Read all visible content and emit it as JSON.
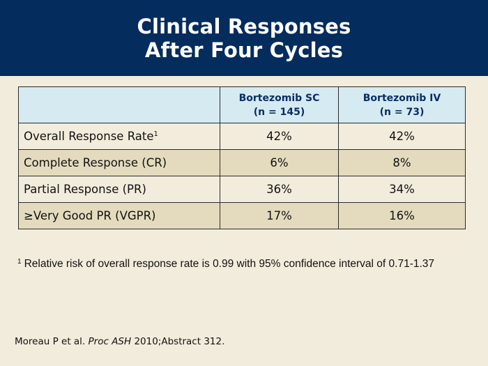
{
  "header": {
    "title_line1": "Clinical Responses",
    "title_line2": "After Four Cycles"
  },
  "table": {
    "columns": [
      {
        "name": "Bortezomib SC",
        "n": "(n = 145)"
      },
      {
        "name": "Bortezomib IV",
        "n": "(n = 73)"
      }
    ],
    "rows": [
      {
        "label": "Overall Response Rate",
        "sup": "1",
        "values": [
          "42%",
          "42%"
        ]
      },
      {
        "label": "Complete Response (CR)",
        "sup": "",
        "values": [
          "6%",
          "8%"
        ]
      },
      {
        "label": "Partial Response (PR)",
        "sup": "",
        "values": [
          "36%",
          "34%"
        ]
      },
      {
        "label": "≥Very Good PR (VGPR)",
        "sup": "",
        "values": [
          "17%",
          "16%"
        ]
      }
    ]
  },
  "footnote": {
    "marker": "1",
    "text": "Relative risk of overall response rate is 0.99 with 95% confidence interval of 0.71-1.37"
  },
  "citation": {
    "authors": "Moreau P et al.",
    "journal": "Proc ASH",
    "detail": "2010;Abstract 312."
  }
}
